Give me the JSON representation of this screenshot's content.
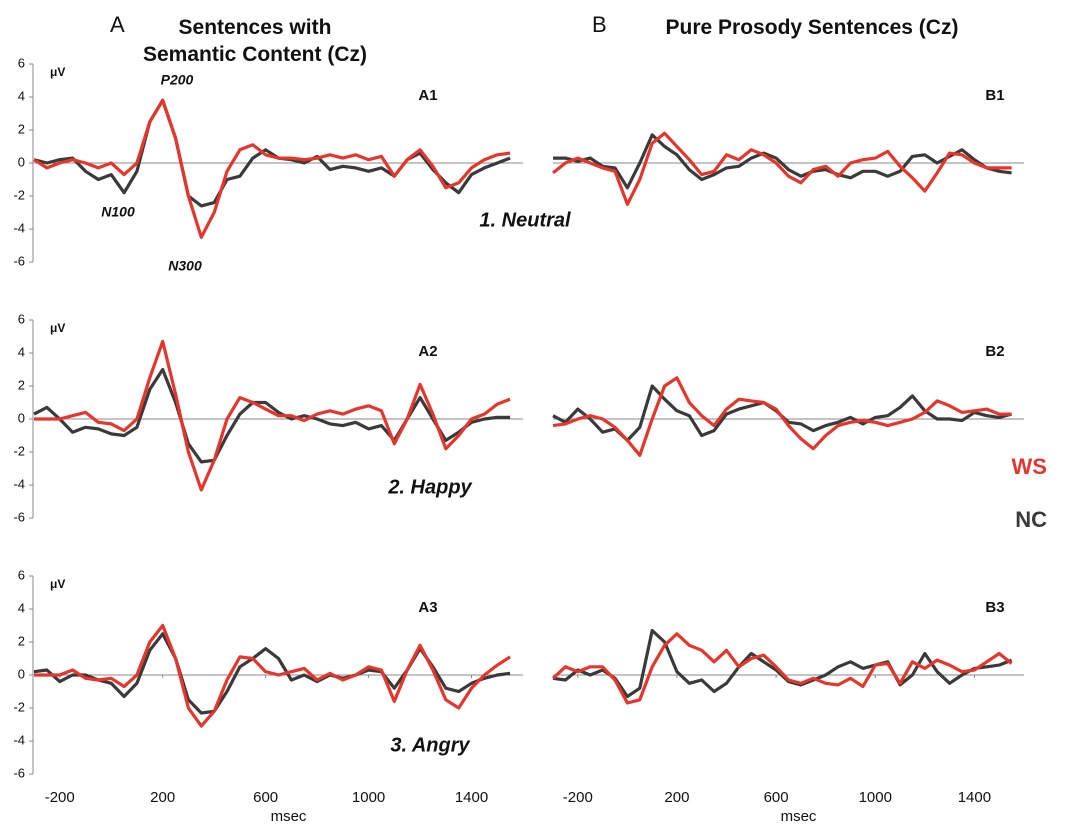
{
  "column_headings": [
    {
      "letter": "A",
      "title": "Sentences with Semantic Content (Cz)"
    },
    {
      "letter": "B",
      "title": "Pure Prosody Sentences (Cz)"
    }
  ],
  "conditions": [
    "1. Neutral",
    "2. Happy",
    "3. Angry"
  ],
  "chart_data": [
    {
      "type": "line",
      "title": "A1",
      "ylabel": "μV",
      "annotations": [
        "P200",
        "N100",
        "N300"
      ],
      "x": [
        -300,
        -250,
        -200,
        -150,
        -100,
        -50,
        0,
        50,
        100,
        150,
        200,
        250,
        300,
        350,
        400,
        450,
        500,
        550,
        600,
        650,
        700,
        750,
        800,
        850,
        900,
        950,
        1000,
        1050,
        1100,
        1150,
        1200,
        1250,
        1300,
        1350,
        1400,
        1450,
        1500,
        1550
      ],
      "xlim": [
        -300,
        1600
      ],
      "ylim": [
        -6,
        6
      ],
      "yticks": [
        -6,
        -4,
        -2,
        0,
        2,
        4,
        6
      ],
      "series": [
        {
          "name": "WS",
          "color": "#e8352b",
          "values": [
            0.2,
            -0.3,
            0,
            0.2,
            0,
            -0.3,
            0,
            -0.7,
            0,
            2.5,
            3.8,
            1.5,
            -2,
            -4.5,
            -3,
            -0.5,
            0.8,
            1.1,
            0.5,
            0.3,
            0.3,
            0.2,
            0.3,
            0.5,
            0.3,
            0.5,
            0.2,
            0.4,
            -0.8,
            0.2,
            0.8,
            -0.2,
            -1.5,
            -1.2,
            -0.3,
            0.2,
            0.5,
            0.6
          ]
        },
        {
          "name": "NC",
          "color": "#3a3a3a",
          "values": [
            0.2,
            0,
            0.2,
            0.3,
            -0.5,
            -1,
            -0.7,
            -1.8,
            -0.5,
            2.5,
            3.8,
            1.5,
            -2,
            -2.6,
            -2.4,
            -1,
            -0.8,
            0.3,
            0.8,
            0.3,
            0.2,
            0,
            0.4,
            -0.4,
            -0.2,
            -0.3,
            -0.5,
            -0.3,
            -0.8,
            0.2,
            0.6,
            -0.4,
            -1.2,
            -1.8,
            -0.7,
            -0.3,
            0,
            0.3
          ]
        }
      ]
    },
    {
      "type": "line",
      "title": "A2",
      "ylabel": "μV",
      "x": [
        -300,
        -250,
        -200,
        -150,
        -100,
        -50,
        0,
        50,
        100,
        150,
        200,
        250,
        300,
        350,
        400,
        450,
        500,
        550,
        600,
        650,
        700,
        750,
        800,
        850,
        900,
        950,
        1000,
        1050,
        1100,
        1150,
        1200,
        1250,
        1300,
        1350,
        1400,
        1450,
        1500,
        1550
      ],
      "xlim": [
        -300,
        1600
      ],
      "ylim": [
        -6,
        6
      ],
      "yticks": [
        -6,
        -4,
        -2,
        0,
        2,
        4,
        6
      ],
      "series": [
        {
          "color": "#e8352b",
          "values": [
            0,
            0,
            0,
            0.2,
            0.4,
            -0.2,
            -0.3,
            -0.7,
            0,
            2.5,
            4.7,
            1.5,
            -2,
            -4.3,
            -2.5,
            0,
            1.3,
            1,
            0.6,
            0.2,
            0.2,
            -0.1,
            0.3,
            0.5,
            0.3,
            0.6,
            0.8,
            0.5,
            -1.5,
            0,
            2.1,
            0.3,
            -1.8,
            -1,
            0,
            0.3,
            0.9,
            1.2
          ]
        },
        {
          "color": "#3a3a3a",
          "values": [
            0.3,
            0.7,
            0,
            -0.8,
            -0.5,
            -0.6,
            -0.9,
            -1,
            -0.5,
            1.8,
            3,
            1,
            -1.5,
            -2.6,
            -2.5,
            -1,
            0.3,
            1,
            1,
            0.4,
            0,
            0.2,
            0,
            -0.3,
            -0.4,
            -0.2,
            -0.6,
            -0.4,
            -1.3,
            0,
            1.3,
            0,
            -1.3,
            -0.8,
            -0.2,
            0,
            0.1,
            0.1
          ]
        }
      ]
    },
    {
      "type": "line",
      "title": "A3",
      "ylabel": "μV",
      "xlabel": "msec",
      "x": [
        -300,
        -250,
        -200,
        -150,
        -100,
        -50,
        0,
        50,
        100,
        150,
        200,
        250,
        300,
        350,
        400,
        450,
        500,
        550,
        600,
        650,
        700,
        750,
        800,
        850,
        900,
        950,
        1000,
        1050,
        1100,
        1150,
        1200,
        1250,
        1300,
        1350,
        1400,
        1450,
        1500,
        1550
      ],
      "xlim": [
        -300,
        1600
      ],
      "xticks": [
        -200,
        200,
        600,
        1000,
        1400
      ],
      "ylim": [
        -6,
        6
      ],
      "yticks": [
        -6,
        -4,
        -2,
        0,
        2,
        4,
        6
      ],
      "series": [
        {
          "color": "#e8352b",
          "values": [
            0,
            0,
            0,
            0.3,
            -0.2,
            -0.3,
            -0.2,
            -0.7,
            0,
            2,
            3,
            1,
            -2,
            -3.1,
            -2.2,
            -0.3,
            1.1,
            1,
            0.2,
            0,
            0.2,
            0.4,
            -0.3,
            0.1,
            -0.3,
            0,
            0.5,
            0.3,
            -1.6,
            0.3,
            1.8,
            0.3,
            -1.5,
            -2,
            -0.8,
            0,
            0.6,
            1.1
          ]
        },
        {
          "color": "#3a3a3a",
          "values": [
            0.2,
            0.3,
            -0.4,
            0,
            0,
            -0.3,
            -0.5,
            -1.3,
            -0.5,
            1.5,
            2.5,
            1,
            -1.5,
            -2.3,
            -2.2,
            -1,
            0.5,
            1,
            1.6,
            1,
            -0.3,
            0,
            -0.4,
            0,
            -0.2,
            0,
            0.3,
            0.2,
            -0.8,
            0.3,
            1.6,
            0.5,
            -0.8,
            -1,
            -0.5,
            -0.2,
            0,
            0.1
          ]
        }
      ]
    },
    {
      "type": "line",
      "title": "B1",
      "x": [
        -300,
        -250,
        -200,
        -150,
        -100,
        -50,
        0,
        50,
        100,
        150,
        200,
        250,
        300,
        350,
        400,
        450,
        500,
        550,
        600,
        650,
        700,
        750,
        800,
        850,
        900,
        950,
        1000,
        1050,
        1100,
        1150,
        1200,
        1250,
        1300,
        1350,
        1400,
        1450,
        1500,
        1550
      ],
      "xlim": [
        -300,
        1600
      ],
      "ylim": [
        -6,
        6
      ],
      "series": [
        {
          "color": "#e8352b",
          "values": [
            -0.6,
            0,
            0.3,
            0,
            -0.3,
            -0.5,
            -2.5,
            -1,
            1.2,
            1.8,
            1,
            0.2,
            -0.7,
            -0.5,
            0.5,
            0.2,
            0.8,
            0.5,
            0,
            -0.8,
            -1.2,
            -0.4,
            -0.2,
            -0.8,
            0,
            0.2,
            0.3,
            0.7,
            -0.2,
            -0.9,
            -1.7,
            -0.6,
            0.6,
            0.5,
            0,
            -0.3,
            -0.3,
            -0.3
          ]
        },
        {
          "color": "#3a3a3a",
          "values": [
            0.3,
            0.3,
            0.1,
            0.3,
            -0.2,
            -0.3,
            -1.5,
            0,
            1.7,
            1,
            0.5,
            -0.4,
            -1,
            -0.7,
            -0.3,
            -0.2,
            0.3,
            0.6,
            0.3,
            -0.4,
            -0.8,
            -0.5,
            -0.4,
            -0.7,
            -0.9,
            -0.5,
            -0.5,
            -0.8,
            -0.5,
            0.4,
            0.5,
            0,
            0.4,
            0.8,
            0.2,
            -0.3,
            -0.5,
            -0.6
          ]
        }
      ]
    },
    {
      "type": "line",
      "title": "B2",
      "x": [
        -300,
        -250,
        -200,
        -150,
        -100,
        -50,
        0,
        50,
        100,
        150,
        200,
        250,
        300,
        350,
        400,
        450,
        500,
        550,
        600,
        650,
        700,
        750,
        800,
        850,
        900,
        950,
        1000,
        1050,
        1100,
        1150,
        1200,
        1250,
        1300,
        1350,
        1400,
        1450,
        1500,
        1550
      ],
      "xlim": [
        -300,
        1600
      ],
      "ylim": [
        -6,
        6
      ],
      "series": [
        {
          "color": "#e8352b",
          "values": [
            -0.4,
            -0.3,
            0,
            0.2,
            0,
            -0.5,
            -1.3,
            -2.2,
            0,
            2,
            2.5,
            1,
            0.2,
            -0.4,
            0.6,
            1.2,
            1.1,
            1,
            0.6,
            -0.4,
            -1.2,
            -1.8,
            -1,
            -0.4,
            -0.2,
            -0.1,
            -0.2,
            -0.4,
            -0.2,
            0,
            0.4,
            1.1,
            0.8,
            0.4,
            0.5,
            0.6,
            0.3,
            0.3
          ]
        },
        {
          "color": "#3a3a3a",
          "values": [
            0.2,
            -0.2,
            0.6,
            0,
            -0.8,
            -0.6,
            -1.3,
            -0.5,
            2,
            1.2,
            0.5,
            0.2,
            -1,
            -0.7,
            0.3,
            0.6,
            0.8,
            1,
            0.5,
            -0.2,
            -0.3,
            -0.7,
            -0.4,
            -0.2,
            0.1,
            -0.3,
            0.1,
            0.2,
            0.7,
            1.4,
            0.5,
            0,
            0,
            -0.1,
            0.4,
            0.2,
            0.1,
            0.3
          ]
        }
      ]
    },
    {
      "type": "line",
      "title": "B3",
      "xlabel": "msec",
      "x": [
        -300,
        -250,
        -200,
        -150,
        -100,
        -50,
        0,
        50,
        100,
        150,
        200,
        250,
        300,
        350,
        400,
        450,
        500,
        550,
        600,
        650,
        700,
        750,
        800,
        850,
        900,
        950,
        1000,
        1050,
        1100,
        1150,
        1200,
        1250,
        1300,
        1350,
        1400,
        1450,
        1500,
        1550
      ],
      "xlim": [
        -300,
        1600
      ],
      "xticks": [
        -200,
        200,
        600,
        1000,
        1400
      ],
      "ylim": [
        -6,
        6
      ],
      "series": [
        {
          "color": "#e8352b",
          "values": [
            -0.2,
            0.5,
            0.2,
            0.5,
            0.5,
            -0.3,
            -1.7,
            -1.5,
            0.5,
            1.8,
            2.5,
            1.8,
            1.5,
            0.8,
            1.5,
            0.5,
            1,
            1.2,
            0.5,
            -0.3,
            -0.5,
            -0.2,
            -0.5,
            -0.6,
            -0.2,
            -0.7,
            0.6,
            0.7,
            -0.5,
            0.8,
            0.4,
            0.9,
            0.6,
            0.2,
            0.3,
            0.8,
            1.3,
            0.7
          ]
        },
        {
          "color": "#3a3a3a",
          "values": [
            -0.2,
            -0.3,
            0.3,
            0,
            0.3,
            -0.2,
            -1.3,
            -0.8,
            2.7,
            2,
            0.2,
            -0.5,
            -0.3,
            -1,
            -0.5,
            0.5,
            1.3,
            0.8,
            0.3,
            -0.4,
            -0.6,
            -0.3,
            0,
            0.5,
            0.8,
            0.4,
            0.6,
            0.8,
            -0.6,
            0,
            1.3,
            0.2,
            -0.5,
            0,
            0.4,
            0.5,
            0.6,
            0.9
          ]
        }
      ]
    }
  ]
}
